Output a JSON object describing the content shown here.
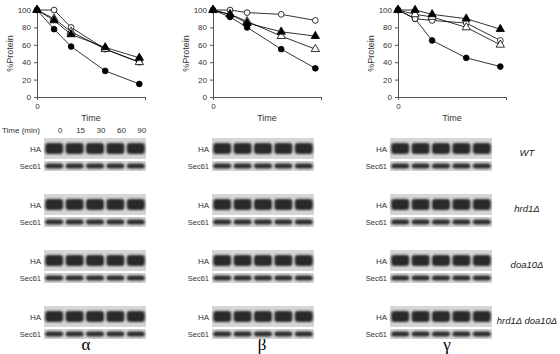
{
  "chart_data": [
    {
      "type": "line",
      "title": "α",
      "x_label": "Time",
      "y_label": "%Protein",
      "x": [
        0,
        15,
        30,
        60,
        90
      ],
      "xlim": [
        0,
        95
      ],
      "xticks": [
        0
      ],
      "ylim": [
        0,
        100
      ],
      "yticks": [
        0,
        20,
        40,
        60,
        80,
        100
      ],
      "series": [
        {
          "color": "#000000",
          "marker": "circle",
          "values": [
            100,
            78,
            58,
            30,
            15
          ]
        },
        {
          "color": "#000000",
          "marker": "open-circle",
          "values": [
            100,
            100,
            80,
            55,
            40
          ]
        },
        {
          "color": "#000000",
          "marker": "open-triangle",
          "values": [
            100,
            90,
            75,
            55,
            40
          ]
        },
        {
          "color": "#000000",
          "marker": "triangle",
          "values": [
            100,
            88,
            72,
            57,
            45
          ]
        }
      ]
    },
    {
      "type": "line",
      "title": "β",
      "x_label": "Time",
      "y_label": "%Protein",
      "x": [
        0,
        15,
        30,
        60,
        90
      ],
      "xlim": [
        0,
        95
      ],
      "xticks": [
        0
      ],
      "ylim": [
        0,
        100
      ],
      "yticks": [
        0,
        20,
        40,
        60,
        80,
        100
      ],
      "series": [
        {
          "color": "#000000",
          "marker": "circle",
          "values": [
            100,
            92,
            80,
            55,
            33
          ]
        },
        {
          "color": "#000000",
          "marker": "open-circle",
          "values": [
            100,
            100,
            97,
            95,
            88
          ]
        },
        {
          "color": "#000000",
          "marker": "open-triangle",
          "values": [
            100,
            95,
            87,
            70,
            55
          ]
        },
        {
          "color": "#000000",
          "marker": "triangle",
          "values": [
            100,
            95,
            85,
            75,
            70
          ]
        }
      ]
    },
    {
      "type": "line",
      "title": "γ",
      "x_label": "Time",
      "y_label": "%Protein",
      "x": [
        0,
        15,
        30,
        60,
        90
      ],
      "xlim": [
        0,
        95
      ],
      "xticks": [
        0
      ],
      "ylim": [
        0,
        100
      ],
      "yticks": [
        0,
        20,
        40,
        60,
        80,
        100
      ],
      "series": [
        {
          "color": "#000000",
          "marker": "circle",
          "values": [
            100,
            90,
            65,
            45,
            35
          ]
        },
        {
          "color": "#000000",
          "marker": "open-circle",
          "values": [
            100,
            90,
            88,
            85,
            65
          ]
        },
        {
          "color": "#000000",
          "marker": "open-triangle",
          "values": [
            100,
            95,
            92,
            80,
            60
          ]
        },
        {
          "color": "#000000",
          "marker": "triangle",
          "values": [
            100,
            100,
            95,
            90,
            78
          ]
        }
      ]
    }
  ],
  "blots": {
    "time_label": "Time (min)",
    "times": [
      0,
      15,
      30,
      60,
      90
    ],
    "bands": [
      "HA",
      "Sec61"
    ],
    "strains": [
      "WT",
      "hrd1Δ",
      "doa10Δ",
      "hrd1Δ doa10Δ"
    ]
  }
}
